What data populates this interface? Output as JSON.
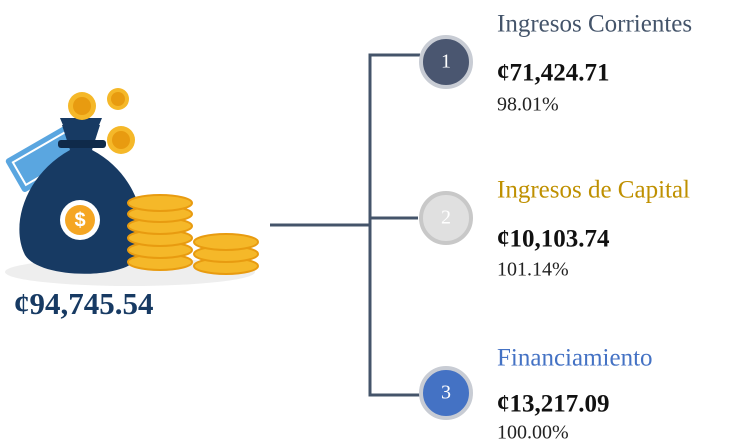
{
  "total": "¢94,745.54",
  "items": [
    {
      "number": "1",
      "title": "Ingresos Corrientes",
      "amount": "¢71,424.71",
      "percent": "98.01%"
    },
    {
      "number": "2",
      "title": "Ingresos de Capital",
      "amount": "¢10,103.74",
      "percent": "101.14%"
    },
    {
      "number": "3",
      "title": "Financiamiento",
      "amount": "¢13,217.09",
      "percent": "100.00%"
    }
  ]
}
